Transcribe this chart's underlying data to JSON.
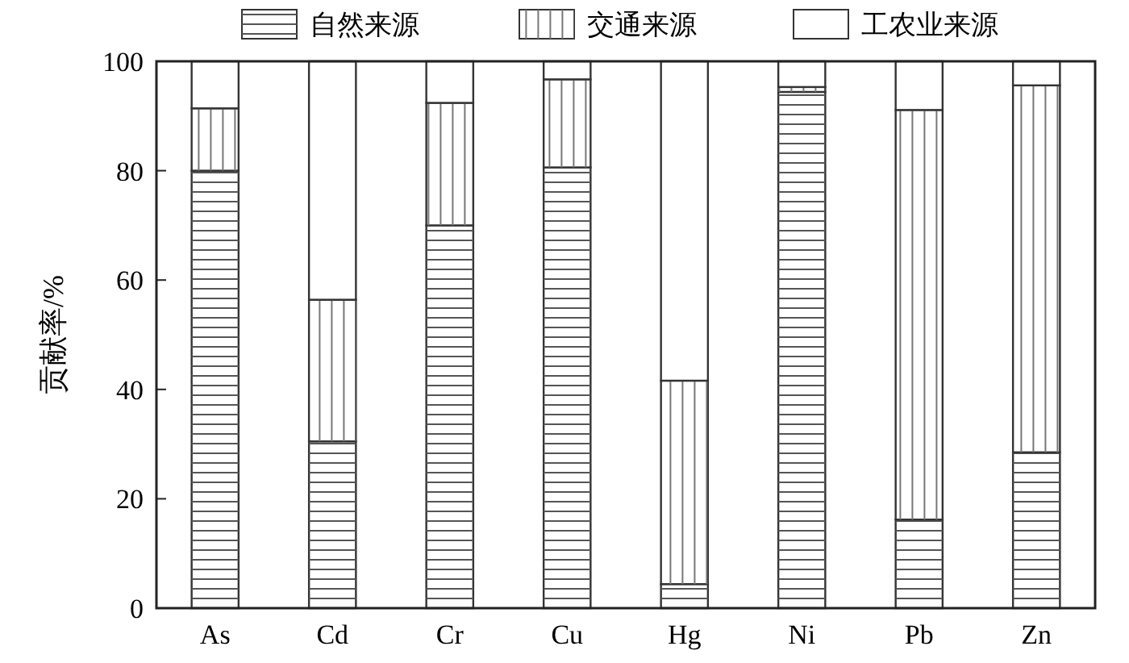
{
  "chart_data": {
    "type": "bar",
    "stacked": true,
    "ylabel": "贡献率/%",
    "categories": [
      "As",
      "Cd",
      "Cr",
      "Cu",
      "Hg",
      "Ni",
      "Pb",
      "Zn"
    ],
    "series": [
      {
        "name": "自然来源",
        "color": "#ffffff",
        "values": [
          80,
          30.5,
          70,
          80.6,
          4.4,
          94.4,
          16.2,
          28.5
        ]
      },
      {
        "name": "交通来源",
        "color": "#ffffff",
        "values": [
          11.4,
          25.9,
          22.4,
          16.1,
          37.2,
          0.9,
          74.9,
          67.1
        ]
      },
      {
        "name": "工农业来源",
        "color": "#ffffff",
        "values": [
          8.6,
          43.6,
          7.6,
          3.3,
          58.4,
          4.7,
          8.9,
          4.4
        ]
      }
    ],
    "ylim": [
      0,
      100
    ],
    "yticks": [
      0,
      20,
      40,
      60,
      80,
      100
    ],
    "legend": "top",
    "grid": false
  }
}
